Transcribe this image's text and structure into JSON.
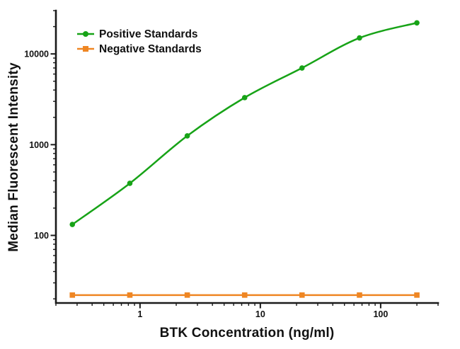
{
  "figure": {
    "background": "#ffffff",
    "axis_color": "#1a1a1a",
    "text_color": "#111111"
  },
  "chart_data": {
    "type": "line",
    "title": "",
    "xlabel": "BTK Concentration (ng/ml)",
    "ylabel": "Median Fluorescent Intensity",
    "x_scale": "log",
    "y_scale": "log",
    "xlim": [
      0.2,
      300
    ],
    "ylim": [
      18,
      30000
    ],
    "grid": false,
    "legend_position": "top-left-inside",
    "x_ticks": [
      {
        "value": 1,
        "label": "1"
      },
      {
        "value": 10,
        "label": "10"
      },
      {
        "value": 100,
        "label": "100"
      }
    ],
    "y_ticks": [
      {
        "value": 100,
        "label": "100"
      },
      {
        "value": 1000,
        "label": "1000"
      },
      {
        "value": 10000,
        "label": "10000"
      }
    ],
    "series": [
      {
        "name": "Positive Standards",
        "color": "#17a317",
        "marker": "circle",
        "smooth": true,
        "x": [
          0.274,
          0.823,
          2.47,
          7.41,
          22.2,
          66.7,
          200
        ],
        "y": [
          132,
          375,
          1250,
          3300,
          7000,
          15000,
          22000
        ]
      },
      {
        "name": "Negative Standards",
        "color": "#ef8623",
        "marker": "square",
        "smooth": false,
        "x": [
          0.274,
          0.823,
          2.47,
          7.41,
          22.2,
          66.7,
          200
        ],
        "y": [
          22,
          22,
          22,
          22,
          22,
          22,
          22
        ]
      }
    ]
  }
}
